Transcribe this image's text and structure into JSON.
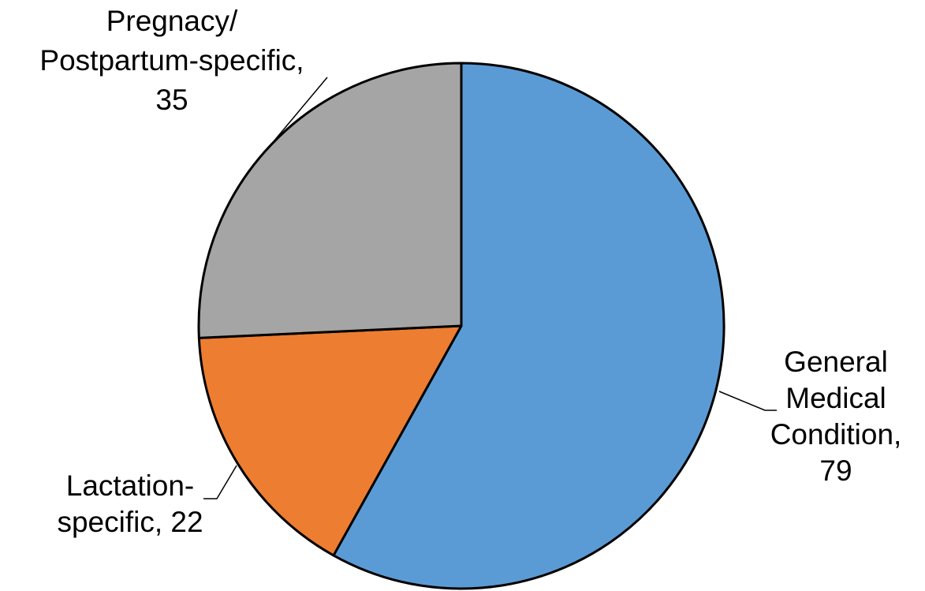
{
  "chart_data": {
    "type": "pie",
    "title": "",
    "slices": [
      {
        "name": "General Medical Condition",
        "value": 79,
        "color": "#5B9BD5",
        "label_lines": [
          "General",
          "Medical",
          "Condition,",
          "79"
        ]
      },
      {
        "name": "Lactation-specific",
        "value": 22,
        "color": "#ED7D31",
        "label_lines": [
          "Lactation-",
          "specific, 22"
        ]
      },
      {
        "name": "Pregnacy/Postpartum-specific",
        "value": 35,
        "color": "#A5A5A5",
        "label_lines": [
          "Pregnacy/",
          "Postpartum-specific,",
          "35"
        ]
      }
    ],
    "start_angle": "12 o'clock",
    "direction": "clockwise",
    "legend": "none",
    "data_labels": "outside with leader lines"
  }
}
